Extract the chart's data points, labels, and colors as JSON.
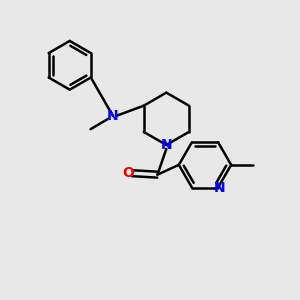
{
  "background_color": "#e8e8e8",
  "bond_color": "#000000",
  "N_color": "#0000ff",
  "O_color": "#ff0000",
  "line_width": 1.8,
  "figsize": [
    3.0,
    3.0
  ],
  "dpi": 100,
  "xlim": [
    0,
    10
  ],
  "ylim": [
    0,
    10
  ]
}
